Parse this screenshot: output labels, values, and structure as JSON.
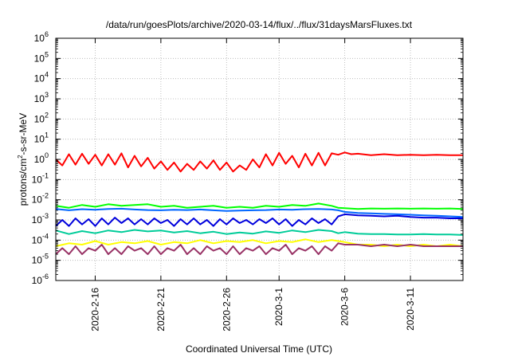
{
  "chart_data": {
    "type": "line",
    "title": "/data/run/goesPlots/archive/2020-03-14/flux/../flux/31daysMarsFluxes.txt",
    "xlabel": "Coordinated Universal Time (UTC)",
    "ylabel": {
      "prefix": "protons/cm",
      "sup": "2",
      "suffix": "-s-sr-MeV"
    },
    "y_scale": "log",
    "ylim_exp": [
      -6,
      6
    ],
    "ytick_exps": [
      "-6",
      "-5",
      "-4",
      "-3",
      "-2",
      "-1",
      "0",
      "1",
      "2",
      "3",
      "4",
      "5",
      "6"
    ],
    "ytick_base": "10",
    "xlim_days": [
      0,
      31
    ],
    "xticks": [
      {
        "day": 3,
        "label": "2020-2-16"
      },
      {
        "day": 8,
        "label": "2020-2-21"
      },
      {
        "day": 13,
        "label": "2020-2-26"
      },
      {
        "day": 17,
        "label": "2020-3-1"
      },
      {
        "day": 22,
        "label": "2020-3-6"
      },
      {
        "day": 27,
        "label": "2020-3-11"
      }
    ],
    "grid": true,
    "series": [
      {
        "color": "#ff0000",
        "x": [
          0,
          0.5,
          1,
          1.5,
          2,
          2.5,
          3,
          3.5,
          4,
          4.5,
          5,
          5.5,
          6,
          6.5,
          7,
          7.5,
          8,
          8.5,
          9,
          9.5,
          10,
          10.5,
          11,
          11.5,
          12,
          12.5,
          13,
          13.5,
          14,
          14.5,
          15,
          15.5,
          16,
          16.5,
          17,
          17.5,
          18,
          18.5,
          19,
          19.5,
          20,
          20.5,
          21,
          21.5,
          22,
          22.5,
          23,
          24,
          25,
          26,
          27,
          28,
          29,
          30,
          31
        ],
        "y": [
          1.0,
          0.5,
          1.8,
          0.55,
          1.9,
          0.6,
          1.7,
          0.5,
          1.8,
          0.55,
          2.0,
          0.4,
          1.5,
          0.45,
          1.2,
          0.35,
          0.8,
          0.3,
          0.7,
          0.25,
          0.6,
          0.3,
          0.8,
          0.35,
          0.9,
          0.3,
          0.7,
          0.25,
          0.5,
          0.3,
          1.0,
          0.4,
          1.8,
          0.5,
          2.1,
          0.6,
          1.5,
          0.4,
          1.9,
          0.5,
          2.1,
          0.5,
          2.0,
          1.7,
          2.2,
          1.8,
          1.9,
          1.6,
          1.8,
          1.6,
          1.7,
          1.6,
          1.7,
          1.6,
          1.6
        ]
      },
      {
        "color": "#00ff00",
        "x": [
          0,
          1,
          2,
          3,
          4,
          5,
          6,
          7,
          8,
          9,
          10,
          11,
          12,
          13,
          14,
          15,
          16,
          17,
          18,
          19,
          20,
          21,
          21.5,
          22,
          23,
          24,
          25,
          26,
          27,
          28,
          29,
          30,
          31
        ],
        "y": [
          0.005,
          0.004,
          0.0055,
          0.0045,
          0.006,
          0.005,
          0.0055,
          0.006,
          0.0045,
          0.005,
          0.004,
          0.0045,
          0.005,
          0.004,
          0.0045,
          0.004,
          0.005,
          0.0045,
          0.0055,
          0.005,
          0.0065,
          0.005,
          0.004,
          0.0038,
          0.0035,
          0.0037,
          0.0036,
          0.0037,
          0.0036,
          0.0037,
          0.0036,
          0.0037,
          0.0035
        ]
      },
      {
        "color": "#0066ff",
        "x": [
          0,
          1,
          2,
          3,
          4,
          5,
          6,
          7,
          8,
          9,
          10,
          11,
          12,
          13,
          14,
          15,
          16,
          17,
          18,
          19,
          20,
          21,
          21.5,
          22,
          23,
          24,
          25,
          26,
          27,
          28,
          29,
          30,
          31
        ],
        "y": [
          0.0035,
          0.003,
          0.0034,
          0.0032,
          0.0035,
          0.0036,
          0.0033,
          0.0031,
          0.003,
          0.0032,
          0.0031,
          0.0033,
          0.003,
          0.0028,
          0.0029,
          0.003,
          0.0031,
          0.0033,
          0.0032,
          0.0034,
          0.0035,
          0.0033,
          0.003,
          0.0025,
          0.0022,
          0.0021,
          0.002,
          0.0019,
          0.0018,
          0.0017,
          0.0016,
          0.0015,
          0.0014
        ]
      },
      {
        "color": "#0000dd",
        "x": [
          0,
          0.5,
          1,
          1.5,
          2,
          2.5,
          3,
          3.5,
          4,
          4.5,
          5,
          5.5,
          6,
          6.5,
          7,
          7.5,
          8,
          8.5,
          9,
          9.5,
          10,
          10.5,
          11,
          11.5,
          12,
          12.5,
          13,
          13.5,
          14,
          14.5,
          15,
          15.5,
          16,
          16.5,
          17,
          17.5,
          18,
          18.5,
          19,
          19.5,
          20,
          20.5,
          21,
          21.5,
          22,
          23,
          24,
          25,
          26,
          27,
          28,
          29,
          30,
          31
        ],
        "y": [
          0.0005,
          0.001,
          0.0005,
          0.0012,
          0.0006,
          0.0011,
          0.0005,
          0.0012,
          0.0006,
          0.0013,
          0.0007,
          0.0012,
          0.0006,
          0.0011,
          0.0006,
          0.0012,
          0.0007,
          0.001,
          0.0005,
          0.0011,
          0.0006,
          0.0012,
          0.0006,
          0.001,
          0.0005,
          0.0011,
          0.0006,
          0.0012,
          0.0007,
          0.001,
          0.0006,
          0.0011,
          0.0007,
          0.0012,
          0.0006,
          0.0011,
          0.0005,
          0.001,
          0.0006,
          0.0012,
          0.0007,
          0.0011,
          0.0006,
          0.0015,
          0.0019,
          0.0017,
          0.0016,
          0.0015,
          0.0016,
          0.0014,
          0.0013,
          0.0013,
          0.0012,
          0.0012
        ]
      },
      {
        "color": "#00cc99",
        "x": [
          0,
          1,
          2,
          3,
          4,
          5,
          6,
          7,
          8,
          9,
          10,
          11,
          12,
          13,
          14,
          15,
          16,
          17,
          18,
          19,
          20,
          21,
          21.5,
          22,
          23,
          24,
          25,
          26,
          27,
          28,
          29,
          30,
          31
        ],
        "y": [
          0.0003,
          0.0002,
          0.00028,
          0.00022,
          0.0003,
          0.00025,
          0.00032,
          0.00027,
          0.0003,
          0.00024,
          0.00028,
          0.00022,
          0.00026,
          0.0002,
          0.00024,
          0.00021,
          0.00027,
          0.00023,
          0.0003,
          0.00025,
          0.00032,
          0.00028,
          0.00022,
          0.00025,
          0.00021,
          0.0002,
          0.0002,
          0.00019,
          0.00019,
          0.0002,
          0.00019,
          0.00019,
          0.00018
        ]
      },
      {
        "color": "#ffff00",
        "x": [
          0,
          1,
          2,
          3,
          4,
          5,
          6,
          7,
          8,
          9,
          10,
          11,
          12,
          13,
          14,
          15,
          16,
          17,
          18,
          19,
          20,
          21,
          22,
          23,
          24,
          25,
          26,
          27,
          28,
          29,
          30,
          31
        ],
        "y": [
          5e-05,
          7e-05,
          6e-05,
          9e-05,
          6e-05,
          8e-05,
          7e-05,
          9e-05,
          6e-05,
          8e-05,
          7e-05,
          0.0001,
          7e-05,
          9e-05,
          8e-05,
          0.0001,
          7e-05,
          9e-05,
          8e-05,
          0.00011,
          8e-05,
          0.0001,
          8e-05,
          6e-05,
          6e-05,
          5e-05,
          6e-05,
          5e-05,
          6e-05,
          5e-05,
          6e-05,
          5e-05
        ]
      },
      {
        "color": "#993366",
        "x": [
          0,
          0.5,
          1,
          1.5,
          2,
          2.5,
          3,
          3.5,
          4,
          4.5,
          5,
          5.5,
          6,
          6.5,
          7,
          7.5,
          8,
          8.5,
          9,
          9.5,
          10,
          10.5,
          11,
          11.5,
          12,
          12.5,
          13,
          13.5,
          14,
          14.5,
          15,
          15.5,
          16,
          16.5,
          17,
          17.5,
          18,
          18.5,
          19,
          19.5,
          20,
          20.5,
          21,
          21.5,
          22,
          23,
          24,
          25,
          26,
          27,
          28,
          29,
          30,
          31
        ],
        "y": [
          2e-05,
          4e-05,
          2e-05,
          5e-05,
          2e-05,
          4e-05,
          3e-05,
          6e-05,
          2e-05,
          4e-05,
          2e-05,
          5e-05,
          3e-05,
          4e-05,
          2e-05,
          5e-05,
          2e-05,
          4e-05,
          3e-05,
          6e-05,
          2e-05,
          4e-05,
          2e-05,
          5e-05,
          3e-05,
          4e-05,
          2e-05,
          5e-05,
          2e-05,
          4e-05,
          3e-05,
          5e-05,
          2e-05,
          4e-05,
          3e-05,
          6e-05,
          2e-05,
          4e-05,
          3e-05,
          5e-05,
          2e-05,
          5e-05,
          3e-05,
          7e-05,
          6e-05,
          6e-05,
          5e-05,
          6e-05,
          5e-05,
          6e-05,
          5e-05,
          5e-05,
          5e-05,
          5e-05
        ]
      }
    ]
  }
}
